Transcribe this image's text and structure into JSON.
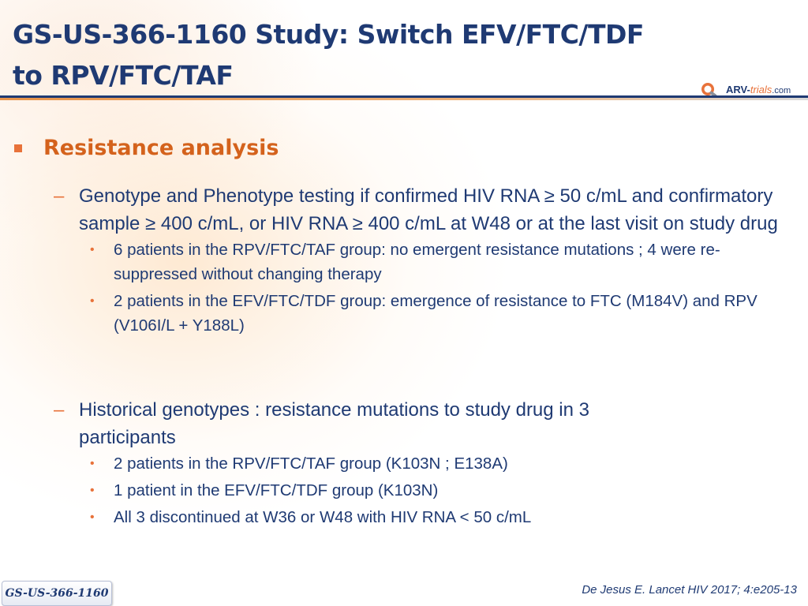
{
  "header": {
    "title_line1": "GS-US-366-1160 Study: Switch EFV/FTC/TDF",
    "title_line2": "to RPV/FTC/TAF",
    "logo": {
      "part1": "ARV-",
      "part2": "trials",
      "part3": ".com"
    }
  },
  "content": {
    "heading": "Resistance analysis",
    "sections": [
      {
        "text": "Genotype and Phenotype testing if confirmed HIV RNA ≥ 50 c/mL and confirmatory sample ≥ 400 c/mL, or HIV RNA ≥ 400 c/mL at W48 or at the last visit on study drug",
        "bullets": [
          "6 patients in the RPV/FTC/TAF group: no emergent resistance mutations ; 4 were re-suppressed without changing therapy",
          "2 patients in the EFV/FTC/TDF group: emergence of resistance to FTC (M184V) and RPV (V106I/L + Y188L)"
        ]
      },
      {
        "text": "Historical genotypes : resistance mutations to study drug in 3 participants",
        "bullets": [
          "2 patients in the RPV/FTC/TAF group (K103N ; E138A)",
          "1 patient in the EFV/FTC/TDF group (K103N)",
          "All 3 discontinued at W36 or W48 with HIV RNA < 50 c/mL"
        ]
      }
    ]
  },
  "footer": {
    "citation": "De Jesus E. Lancet HIV 2017; 4:e205-13",
    "study_tag": "GS-US-366-1160"
  },
  "colors": {
    "title": "#1f3a73",
    "accent": "#e8723a",
    "heading": "#d4621c"
  },
  "icons": {
    "heading_bullet": "square-bullet-icon",
    "level2_marker": "dash-icon",
    "level3_marker": "dot-bullet-icon",
    "logo": "arv-trials-logo"
  }
}
